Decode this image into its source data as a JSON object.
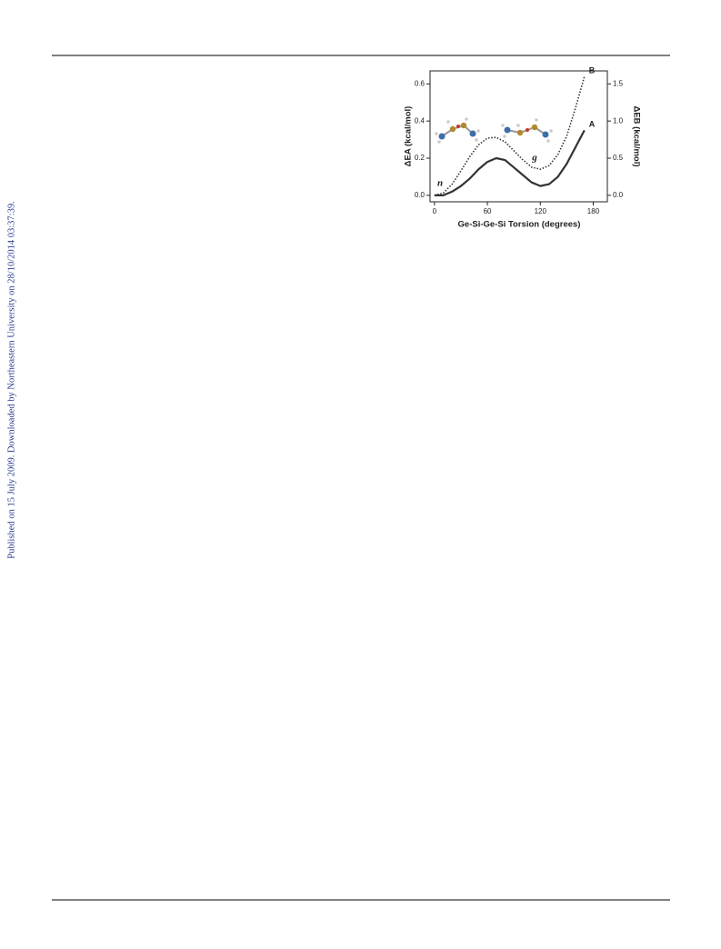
{
  "sidebar": "Published on 15 July 2009. Downloaded by Northeastern University on 28/10/2014 03:37:39.",
  "chart_data": {
    "type": "line",
    "xlabel": "Ge-Si-Ge-Si Torsion (degrees)",
    "ylabel": "ΔEA (kcal/mol)",
    "y2label": "ΔEB (kcal/mol)",
    "x": [
      0,
      10,
      20,
      30,
      40,
      50,
      60,
      70,
      80,
      90,
      100,
      110,
      120,
      130,
      140,
      150,
      160,
      170
    ],
    "series": [
      {
        "name": "A",
        "color": "#333333",
        "style": "solid",
        "values": [
          0,
          0,
          0.02,
          0.05,
          0.09,
          0.14,
          0.18,
          0.2,
          0.19,
          0.15,
          0.11,
          0.07,
          0.05,
          0.06,
          0.1,
          0.17,
          0.26,
          0.35
        ]
      },
      {
        "name": "B",
        "color": "#333333",
        "style": "dotted",
        "axis": "y2",
        "values": [
          0,
          0.03,
          0.15,
          0.33,
          0.52,
          0.68,
          0.77,
          0.78,
          0.72,
          0.6,
          0.48,
          0.38,
          0.35,
          0.4,
          0.55,
          0.8,
          1.18,
          1.6
        ]
      }
    ],
    "annotations": [
      "n",
      "g"
    ],
    "xlim": [
      -5,
      196
    ],
    "xticks": [
      0,
      60,
      120,
      180
    ],
    "ylim": [
      -0.035,
      0.67
    ],
    "yticks": [
      {
        "value": 0,
        "label": "0.0"
      },
      0.2,
      0.4,
      0.6
    ],
    "y2lim": [
      -0.0875,
      1.675
    ],
    "y2ticks": [
      {
        "value": 0,
        "label": "0.0"
      },
      0.5,
      {
        "value": 1,
        "label": "1.0"
      },
      1.5
    ]
  }
}
